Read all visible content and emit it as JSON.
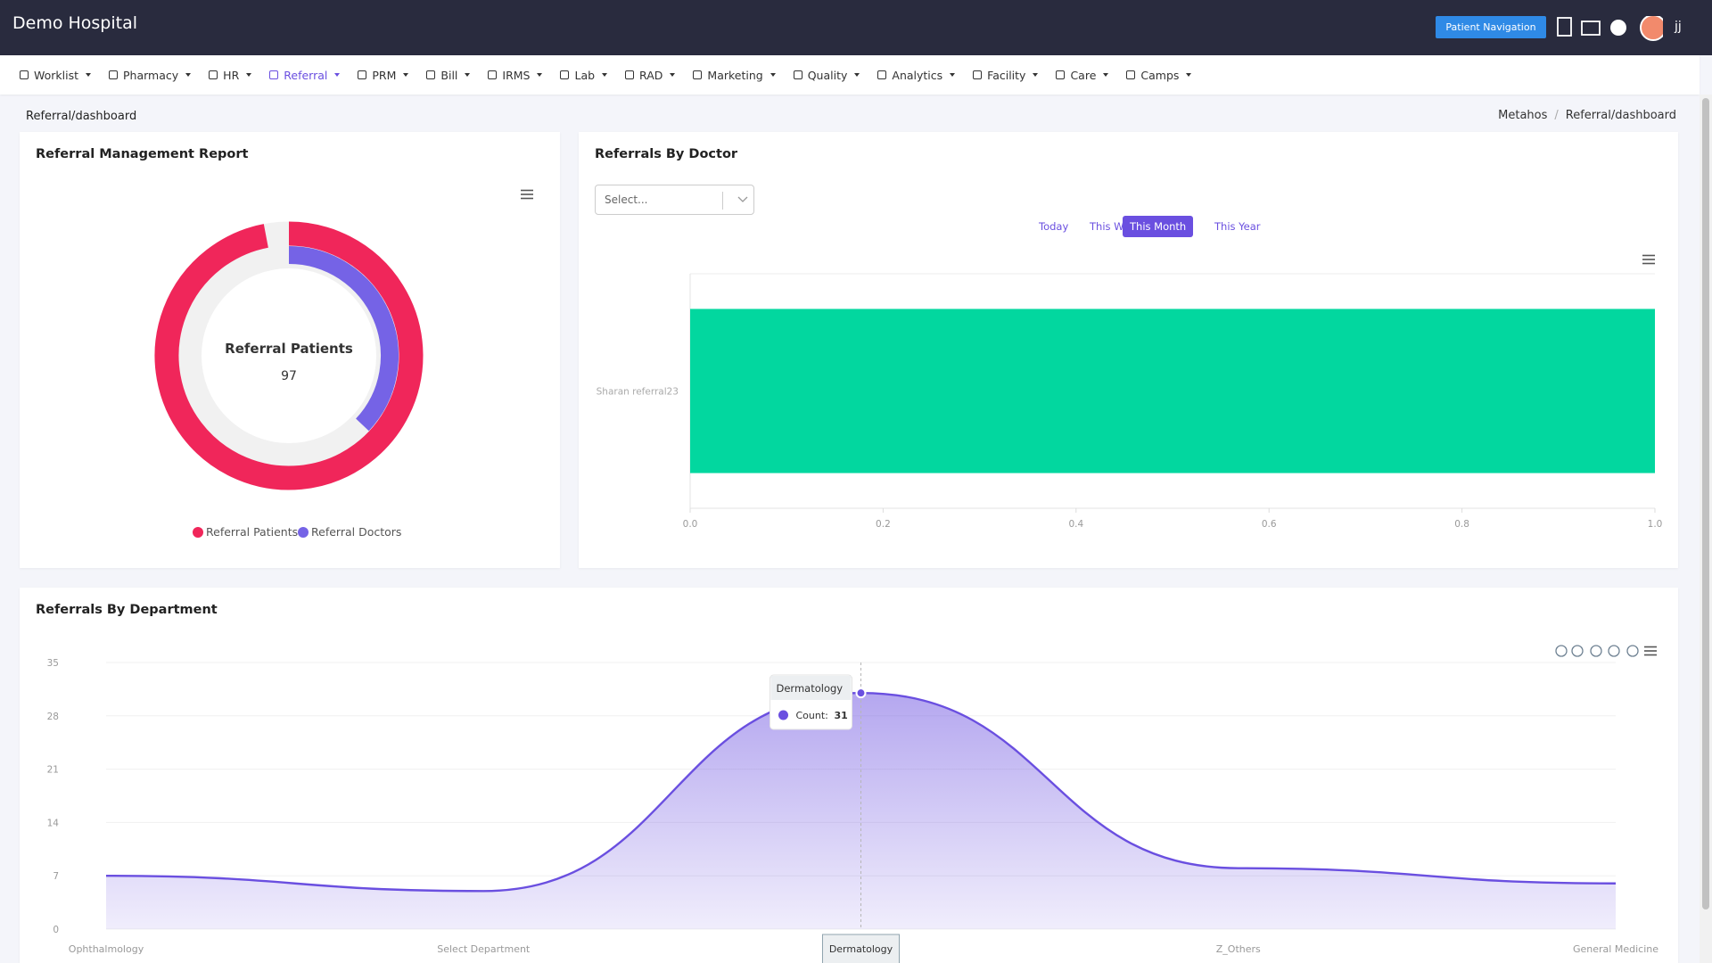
{
  "header": {
    "title": "Demo Hospital",
    "button": "Patient Navigation",
    "user": "jj"
  },
  "nav": [
    "Worklist",
    "Pharmacy",
    "HR",
    "Referral",
    "PRM",
    "Bill",
    "IRMS",
    "Lab",
    "RAD",
    "Marketing",
    "Quality",
    "Analytics",
    "Facility",
    "Care",
    "Camps"
  ],
  "active_nav": 3,
  "breadcrumb": {
    "page": "Referral/dashboard",
    "trail": [
      "Metahos",
      "Referral/dashboard"
    ]
  },
  "doctor_filter": {
    "placeholder": "Select...",
    "ranges": [
      "Today",
      "This Week",
      "This Month",
      "This Year"
    ],
    "active_range": 2
  },
  "chart_data": [
    {
      "type": "radialBar",
      "title": "Referral Management Report",
      "series": [
        {
          "name": "Referral Patients",
          "color": "#f0265a",
          "value": 97
        },
        {
          "name": "Referral Doctors",
          "color": "#7563e6",
          "value": 37
        }
      ]
    },
    {
      "type": "hbar",
      "title": "Referrals By Doctor",
      "categories": [
        "Sharan referral23"
      ],
      "values": [
        1
      ],
      "color": "#02d79f",
      "xlim": [
        0,
        1
      ],
      "xticks": [
        {
          "value": 0,
          "label": "0.0"
        },
        {
          "value": 0.2,
          "label": "0.2"
        },
        {
          "value": 0.4,
          "label": "0.4"
        },
        {
          "value": 0.6,
          "label": "0.6"
        },
        {
          "value": 0.8,
          "label": "0.8"
        },
        {
          "value": 1,
          "label": "1.0"
        }
      ]
    },
    {
      "type": "area",
      "title": "Referrals By Department",
      "categories": [
        "Ophthalmology",
        "Select Department",
        "Dermatology",
        "Z_Others",
        "General Medicine"
      ],
      "values": [
        7,
        5,
        31,
        8,
        6
      ],
      "color": "#6a4fe0",
      "ylim": [
        0,
        35
      ],
      "yticks": [
        0,
        7,
        14,
        21,
        28,
        35
      ],
      "grid": true,
      "tooltip": {
        "index": 2,
        "label": "Count:"
      }
    }
  ]
}
